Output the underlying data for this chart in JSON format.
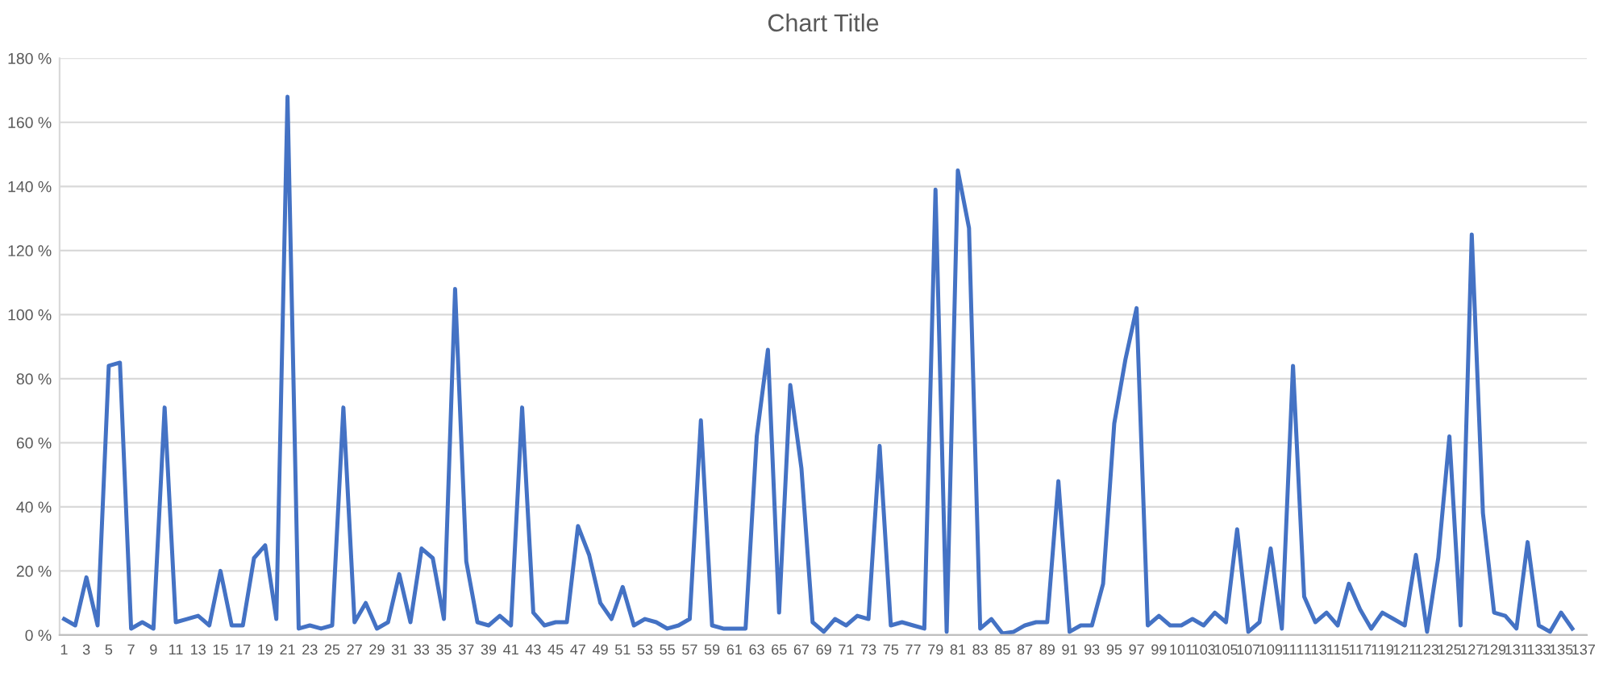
{
  "chart_data": {
    "type": "line",
    "title": "Chart Title",
    "categories": [
      "1",
      null,
      "3",
      null,
      "5",
      null,
      "7",
      null,
      "9",
      null,
      "11",
      null,
      "13",
      null,
      "15",
      null,
      "17",
      null,
      "19",
      null,
      "21",
      null,
      "23",
      null,
      "25",
      null,
      "27",
      null,
      "29",
      null,
      "31",
      null,
      "33",
      null,
      "35",
      null,
      "37",
      null,
      "39",
      null,
      "41",
      null,
      "43",
      null,
      "45",
      null,
      "47",
      null,
      "49",
      null,
      "51",
      null,
      "53",
      null,
      "55",
      null,
      "57",
      null,
      "59",
      null,
      "61",
      null,
      "63",
      null,
      "65",
      null,
      "67",
      null,
      "69",
      null,
      "71",
      null,
      "73",
      null,
      "75",
      null,
      "77",
      null,
      "79",
      null,
      "81",
      null,
      "83",
      null,
      "85",
      null,
      "87",
      null,
      "89",
      null,
      "91",
      null,
      "93",
      null,
      "95",
      null,
      "97",
      null,
      "99",
      null,
      "101",
      null,
      "103",
      null,
      "105",
      null,
      "107",
      null,
      "109",
      null,
      "111",
      null,
      "113",
      null,
      "115",
      null,
      "117",
      null,
      "119",
      null,
      "121",
      null,
      "123",
      null,
      "125",
      null,
      "127",
      null,
      "129",
      null,
      "131",
      null,
      "133",
      null,
      "135",
      null,
      "137"
    ],
    "series": [
      {
        "color": "#4472c4",
        "values": [
          5,
          3,
          18,
          3,
          84,
          85,
          2,
          4,
          2,
          71,
          4,
          5,
          6,
          3,
          20,
          3,
          3,
          24,
          28,
          5,
          168,
          2,
          3,
          2,
          3,
          71,
          4,
          10,
          2,
          4,
          19,
          4,
          27,
          24,
          5,
          108,
          23,
          4,
          3,
          6,
          3,
          71,
          7,
          3,
          4,
          4,
          34,
          25,
          10,
          5,
          15,
          3,
          5,
          4,
          2,
          3,
          5,
          67,
          3,
          2,
          2,
          2,
          62,
          89,
          7,
          78,
          52,
          4,
          1,
          5,
          3,
          6,
          5,
          59,
          3,
          4,
          3,
          2,
          139,
          1,
          145,
          127,
          2,
          5,
          0.5,
          1,
          3,
          4,
          4,
          48,
          1,
          3,
          3,
          16,
          66,
          86,
          102,
          3,
          6,
          3,
          3,
          5,
          3,
          7,
          4,
          33,
          1,
          4,
          27,
          2,
          84,
          12,
          4,
          7,
          3,
          16,
          8,
          2,
          7,
          5,
          3,
          25,
          1,
          24,
          62,
          3,
          125,
          38,
          7,
          6,
          2,
          29,
          3,
          1,
          7,
          2,
          null
        ]
      }
    ],
    "ylim": [
      0,
      180
    ],
    "yticks": [
      {
        "value": 0,
        "label": "0 %"
      },
      {
        "value": 20,
        "label": "20 %"
      },
      {
        "value": 40,
        "label": "40 %"
      },
      {
        "value": 60,
        "label": "60 %"
      },
      {
        "value": 80,
        "label": "80 %"
      },
      {
        "value": 100,
        "label": "100 %"
      },
      {
        "value": 120,
        "label": "120 %"
      },
      {
        "value": 140,
        "label": "140 %"
      },
      {
        "value": 160,
        "label": "160 %"
      },
      {
        "value": 180,
        "label": "180 %"
      }
    ],
    "grid": "y",
    "marker": "none",
    "line_style": "solid"
  }
}
